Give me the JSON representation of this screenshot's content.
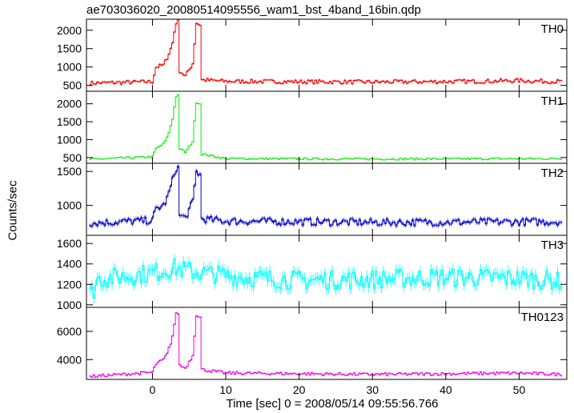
{
  "chart_data": {
    "type": "line",
    "title": "ae703036020_20080514095556_wam1_bst_4band_16bin.qdp",
    "xlabel": "Time [sec] 0 = 2008/05/14 09:55:56.766",
    "ylabel": "Counts/sec",
    "xlim": [
      -9,
      56.5
    ],
    "x_ticks": [
      0,
      10,
      20,
      30,
      40,
      50
    ],
    "x_step": 0.25,
    "x_start": -8.5,
    "x_end": 55.75,
    "panels": [
      {
        "name": "TH0",
        "color": "#ff0000",
        "ylim": [
          340,
          2300
        ],
        "y_ticks": [
          500,
          1000,
          1500,
          2000
        ],
        "baseline": 600,
        "noise": 55,
        "knots": [
          [
            -8.5,
            560
          ],
          [
            0,
            600
          ],
          [
            0.5,
            1000
          ],
          [
            1.5,
            1050
          ],
          [
            2,
            1250
          ],
          [
            2.7,
            1600
          ],
          [
            3.2,
            2200
          ],
          [
            3.5,
            2250
          ],
          [
            3.7,
            900
          ],
          [
            4.5,
            750
          ],
          [
            5.5,
            1100
          ],
          [
            6,
            2200
          ],
          [
            6.5,
            2150
          ],
          [
            6.7,
            650
          ],
          [
            10,
            610
          ],
          [
            30,
            590
          ],
          [
            45,
            610
          ],
          [
            50,
            630
          ],
          [
            55.75,
            600
          ]
        ]
      },
      {
        "name": "TH1",
        "color": "#00ee00",
        "ylim": [
          340,
          2350
        ],
        "y_ticks": [
          500,
          1000,
          1500,
          2000
        ],
        "baseline": 460,
        "noise": 30,
        "knots": [
          [
            -8.5,
            450
          ],
          [
            0,
            520
          ],
          [
            0.5,
            750
          ],
          [
            1.5,
            880
          ],
          [
            2,
            1050
          ],
          [
            2.7,
            1500
          ],
          [
            3.2,
            2200
          ],
          [
            3.5,
            2250
          ],
          [
            3.7,
            750
          ],
          [
            4.5,
            650
          ],
          [
            5.5,
            950
          ],
          [
            6,
            2050
          ],
          [
            6.5,
            2000
          ],
          [
            6.7,
            600
          ],
          [
            10,
            470
          ],
          [
            30,
            460
          ],
          [
            55.75,
            470
          ]
        ]
      },
      {
        "name": "TH2",
        "color": "#0000cc",
        "ylim": [
          560,
          1620
        ],
        "y_ticks": [
          1000,
          1500
        ],
        "baseline": 760,
        "noise": 55,
        "knots": [
          [
            -8.5,
            740
          ],
          [
            0,
            780
          ],
          [
            0.5,
            950
          ],
          [
            1.5,
            1000
          ],
          [
            2,
            1100
          ],
          [
            2.7,
            1350
          ],
          [
            3.2,
            1550
          ],
          [
            3.5,
            1550
          ],
          [
            3.7,
            850
          ],
          [
            4.5,
            820
          ],
          [
            5.5,
            1050
          ],
          [
            6,
            1500
          ],
          [
            6.5,
            1450
          ],
          [
            6.7,
            800
          ],
          [
            10,
            770
          ],
          [
            30,
            750
          ],
          [
            55.75,
            760
          ]
        ]
      },
      {
        "name": "TH3",
        "color": "#00ffff",
        "ylim": [
          975,
          1680
        ],
        "y_ticks": [
          1000,
          1200,
          1400,
          1600
        ],
        "baseline": 1260,
        "noise": 95,
        "knots": [
          [
            -8.5,
            1100
          ],
          [
            -8,
            1150
          ],
          [
            -7.5,
            1250
          ],
          [
            0,
            1310
          ],
          [
            3,
            1360
          ],
          [
            6,
            1320
          ],
          [
            12,
            1270
          ],
          [
            20,
            1240
          ],
          [
            30,
            1250
          ],
          [
            40,
            1270
          ],
          [
            50,
            1260
          ],
          [
            55.75,
            1230
          ]
        ]
      },
      {
        "name": "TH0123",
        "color": "#ee00ee",
        "ylim": [
          2600,
          7700
        ],
        "y_ticks": [
          4000,
          6000
        ],
        "baseline": 2950,
        "noise": 110,
        "knots": [
          [
            -8.5,
            2800
          ],
          [
            0,
            3100
          ],
          [
            0.5,
            3700
          ],
          [
            1.5,
            4000
          ],
          [
            2,
            4400
          ],
          [
            2.7,
            5500
          ],
          [
            3.2,
            7200
          ],
          [
            3.5,
            7300
          ],
          [
            3.7,
            3600
          ],
          [
            4.5,
            3400
          ],
          [
            5.5,
            4300
          ],
          [
            6,
            7200
          ],
          [
            6.5,
            7000
          ],
          [
            6.7,
            3300
          ],
          [
            10,
            3050
          ],
          [
            30,
            2950
          ],
          [
            50,
            3050
          ],
          [
            55.75,
            2950
          ]
        ]
      }
    ]
  }
}
